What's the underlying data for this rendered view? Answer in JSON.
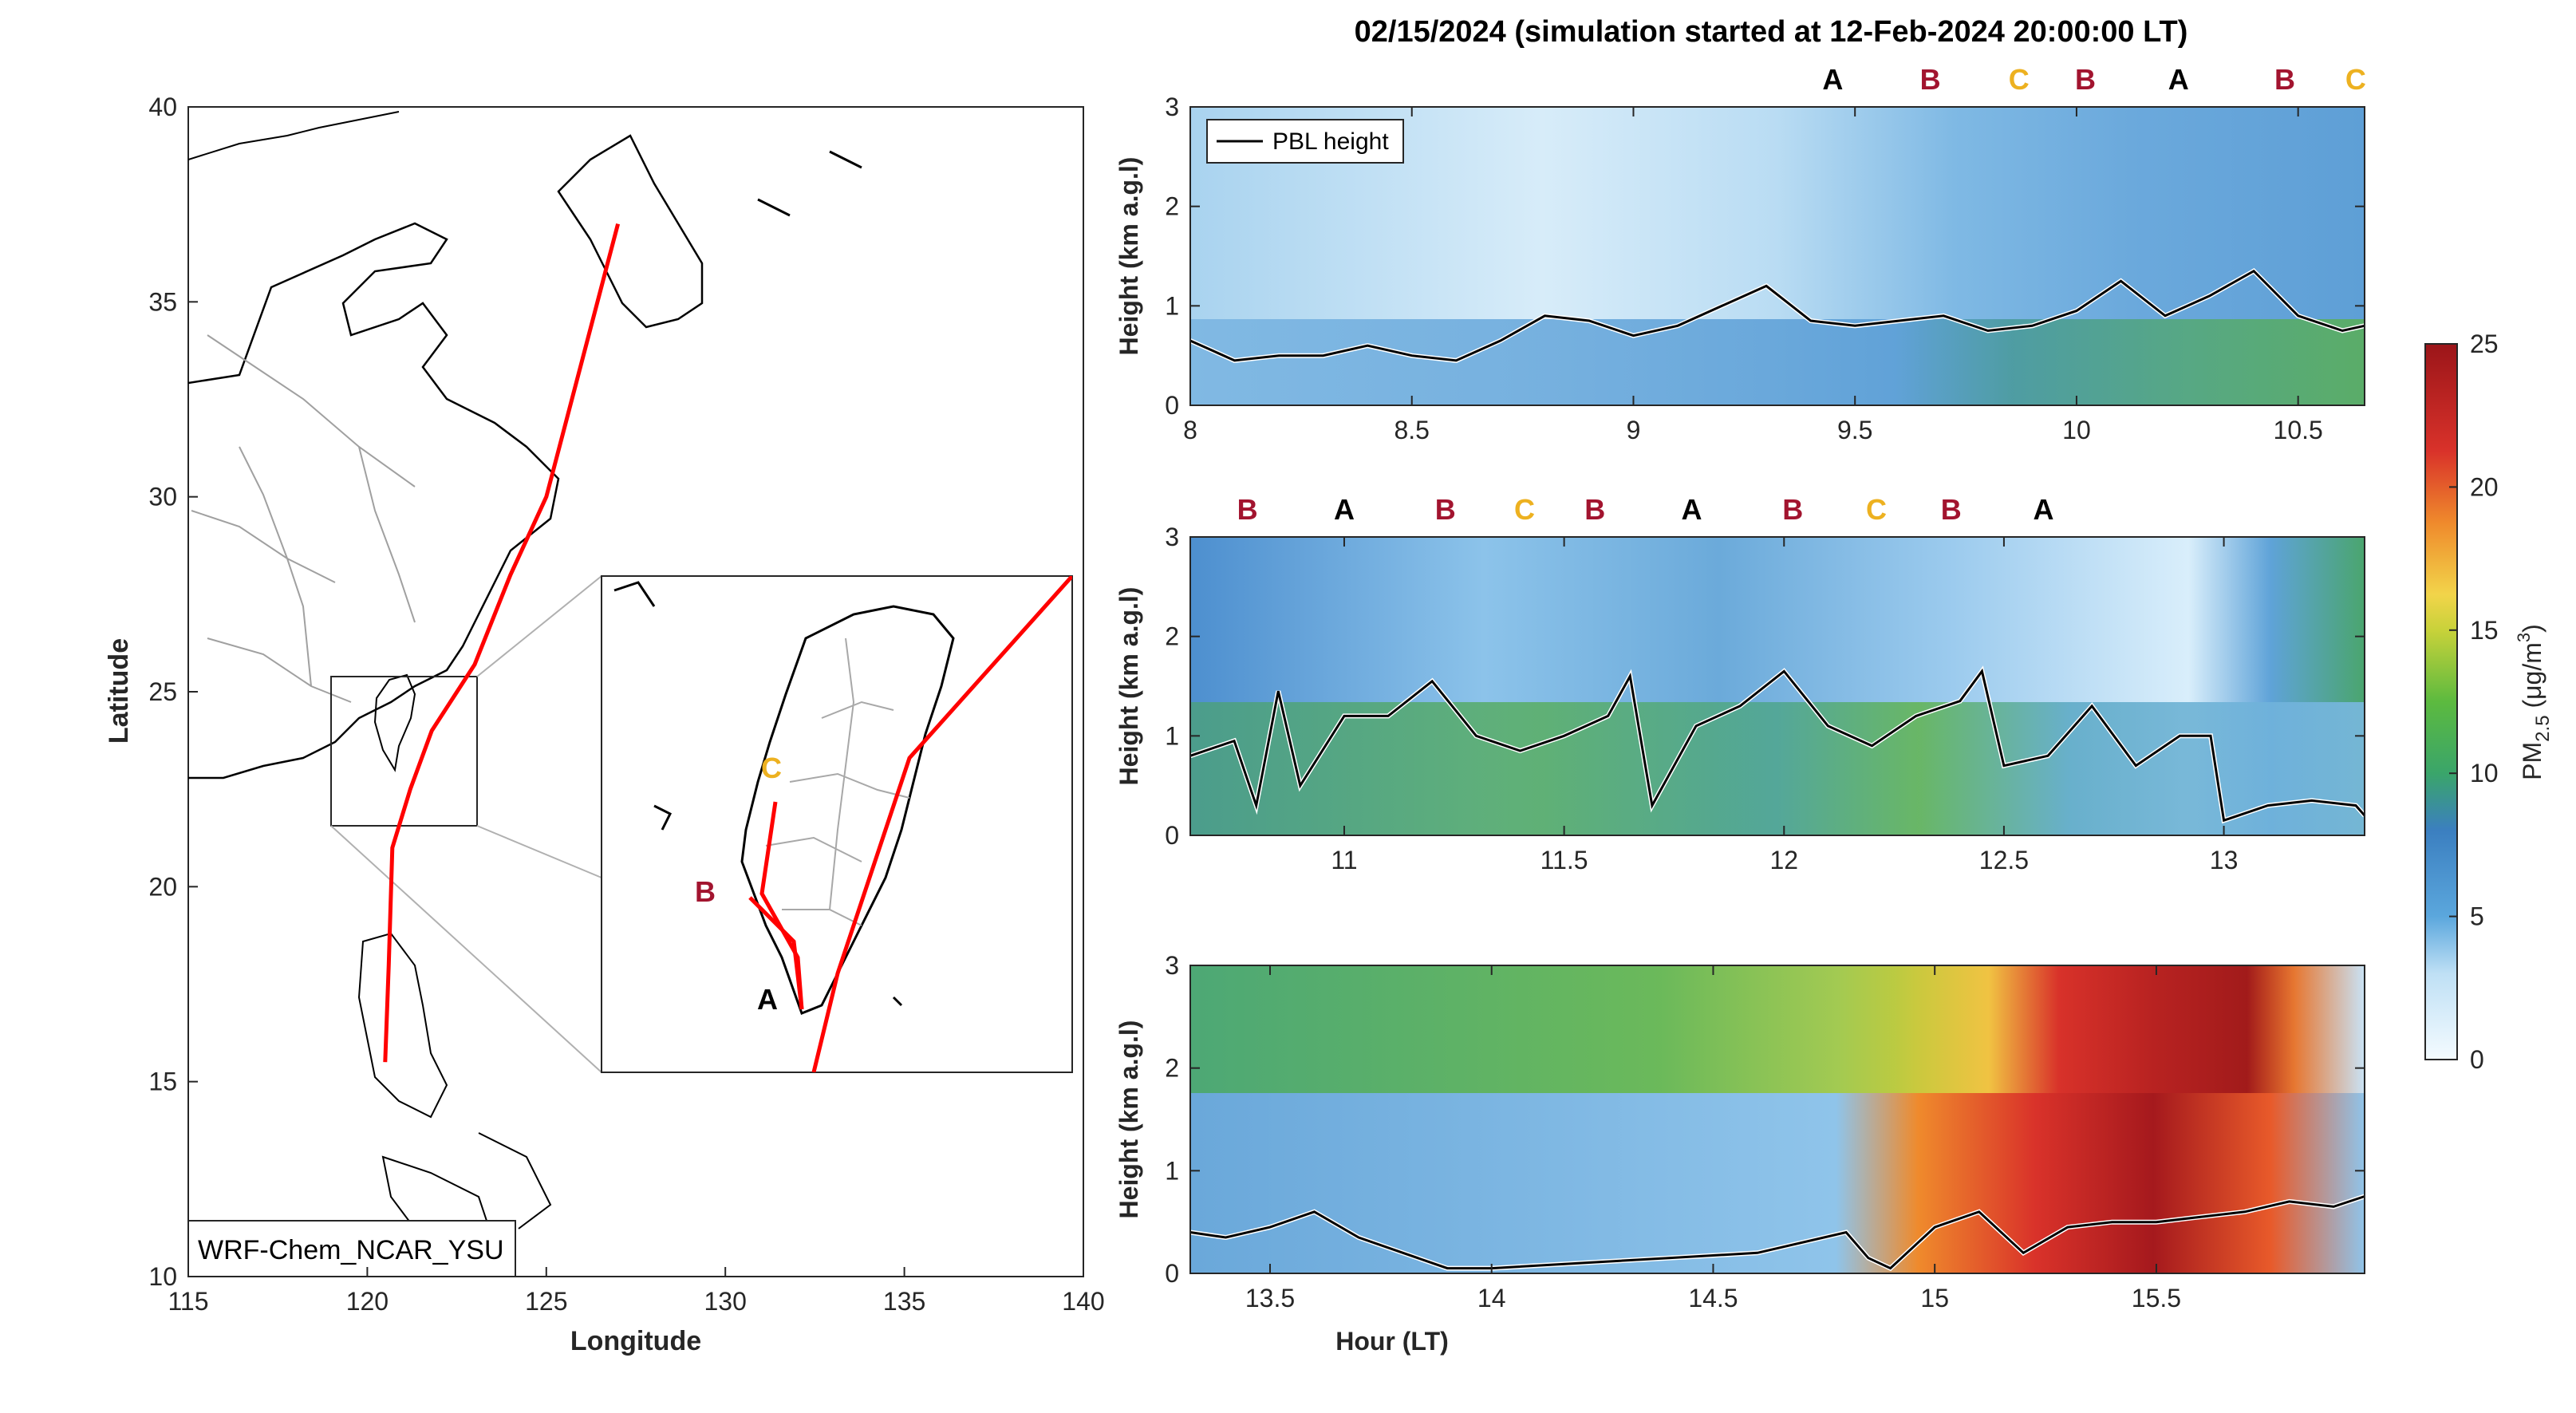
{
  "title": "02/15/2024 (simulation started at 12-Feb-2024 20:00:00 LT)",
  "colors": {
    "trajectory": "#ff0000",
    "marker_A": "#000000",
    "marker_B": "#a2142f",
    "marker_C": "#edb120"
  },
  "map": {
    "xlabel": "Longitude",
    "ylabel": "Latitude",
    "xticks": [
      "115",
      "120",
      "125",
      "130",
      "135",
      "140"
    ],
    "yticks": [
      "10",
      "15",
      "20",
      "25",
      "30",
      "35",
      "40"
    ],
    "model_label": "WRF-Chem_NCAR_YSU",
    "inset_labels": [
      "A",
      "B",
      "C"
    ]
  },
  "colorbar": {
    "label_main": "PM",
    "label_sub": "2.5",
    "label_units": " (μg/m",
    "label_sup": "3",
    "label_end": ")",
    "ticks": [
      "0",
      "5",
      "10",
      "15",
      "20",
      "25"
    ]
  },
  "panels": [
    {
      "ylabel": "Height (km a.g.l)",
      "xticks": [
        "8",
        "8.5",
        "9",
        "9.5",
        "10",
        "10.5"
      ],
      "yticks": [
        "0",
        "1",
        "2",
        "3"
      ],
      "legend": "PBL height",
      "markers": [
        "A",
        "B",
        "C",
        "B",
        "A",
        "B",
        "C"
      ]
    },
    {
      "ylabel": "Height (km a.g.l)",
      "xticks": [
        "11",
        "11.5",
        "12",
        "12.5",
        "13"
      ],
      "yticks": [
        "0",
        "1",
        "2",
        "3"
      ],
      "markers": [
        "B",
        "A",
        "B",
        "C",
        "B",
        "A",
        "B",
        "C",
        "B",
        "A"
      ]
    },
    {
      "ylabel": "Height (km a.g.l)",
      "xlabel": "Hour (LT)",
      "xticks": [
        "13.5",
        "14",
        "14.5",
        "15",
        "15.5"
      ],
      "yticks": [
        "0",
        "1",
        "2",
        "3"
      ]
    }
  ],
  "chart_data": [
    {
      "type": "line",
      "title": "02/15/2024 (simulation started at 12-Feb-2024 20:00:00 LT)",
      "xlim": [
        8.0,
        10.65
      ],
      "ylim": [
        0,
        3
      ],
      "ylabel": "Height (km a.g.l)",
      "series": [
        {
          "name": "PBL height",
          "x": [
            8.0,
            8.05,
            8.1,
            8.2,
            8.3,
            8.4,
            8.5,
            8.6,
            8.7,
            8.8,
            8.9,
            9.0,
            9.1,
            9.2,
            9.3,
            9.4,
            9.5,
            9.6,
            9.7,
            9.8,
            9.9,
            10.0,
            10.1,
            10.2,
            10.3,
            10.4,
            10.5,
            10.6,
            10.65
          ],
          "y": [
            0.65,
            0.55,
            0.45,
            0.5,
            0.5,
            0.6,
            0.5,
            0.45,
            0.65,
            0.9,
            0.85,
            0.7,
            0.8,
            1.0,
            1.2,
            0.85,
            0.8,
            0.85,
            0.9,
            0.75,
            0.8,
            0.95,
            1.25,
            0.9,
            1.1,
            1.35,
            0.9,
            0.75,
            0.8
          ]
        }
      ],
      "markers_x": [
        9.45,
        9.67,
        9.87,
        10.02,
        10.23,
        10.47,
        10.63
      ],
      "markers": [
        "A",
        "B",
        "C",
        "B",
        "A",
        "B",
        "C"
      ]
    },
    {
      "type": "line",
      "xlim": [
        10.65,
        13.32
      ],
      "ylim": [
        0,
        3
      ],
      "ylabel": "Height (km a.g.l)",
      "series": [
        {
          "name": "PBL height",
          "x": [
            10.65,
            10.75,
            10.8,
            10.85,
            10.9,
            11.0,
            11.1,
            11.2,
            11.3,
            11.4,
            11.5,
            11.6,
            11.65,
            11.7,
            11.8,
            11.9,
            12.0,
            12.1,
            12.2,
            12.3,
            12.4,
            12.45,
            12.5,
            12.6,
            12.7,
            12.8,
            12.9,
            12.97,
            13.0,
            13.1,
            13.2,
            13.3,
            13.32
          ],
          "y": [
            0.8,
            0.95,
            0.3,
            1.45,
            0.5,
            1.2,
            1.2,
            1.55,
            1.0,
            0.85,
            1.0,
            1.2,
            1.6,
            0.3,
            1.1,
            1.3,
            1.65,
            1.1,
            0.9,
            1.2,
            1.35,
            1.65,
            0.7,
            0.8,
            1.3,
            0.7,
            1.0,
            1.0,
            0.15,
            0.3,
            0.35,
            0.3,
            0.2
          ]
        }
      ],
      "markers_x": [
        10.78,
        11.0,
        11.23,
        11.41,
        11.57,
        11.79,
        12.02,
        12.21,
        12.38,
        12.59
      ],
      "markers": [
        "B",
        "A",
        "B",
        "C",
        "B",
        "A",
        "B",
        "C",
        "B",
        "A"
      ]
    },
    {
      "type": "line",
      "xlim": [
        13.32,
        15.97
      ],
      "ylim": [
        0,
        3
      ],
      "xlabel": "Hour (LT)",
      "ylabel": "Height (km a.g.l)",
      "series": [
        {
          "name": "PBL height",
          "x": [
            13.32,
            13.4,
            13.5,
            13.6,
            13.7,
            13.8,
            13.9,
            14.0,
            14.2,
            14.4,
            14.6,
            14.8,
            14.85,
            14.9,
            15.0,
            15.1,
            15.2,
            15.3,
            15.4,
            15.5,
            15.6,
            15.7,
            15.8,
            15.9,
            15.97
          ],
          "y": [
            0.4,
            0.35,
            0.45,
            0.6,
            0.35,
            0.2,
            0.05,
            0.05,
            0.1,
            0.15,
            0.2,
            0.4,
            0.15,
            0.05,
            0.45,
            0.6,
            0.2,
            0.45,
            0.5,
            0.5,
            0.55,
            0.6,
            0.7,
            0.65,
            0.75
          ]
        }
      ]
    },
    {
      "type": "line",
      "xlabel": "Longitude",
      "ylabel": "Latitude",
      "xlim": [
        115,
        140
      ],
      "ylim": [
        10,
        40
      ],
      "series": [
        {
          "name": "",
          "x": [
            127.0,
            126.0,
            125.0,
            124.0,
            123.0,
            121.8,
            121.2,
            120.7,
            120.6,
            120.5
          ],
          "y": [
            37.0,
            33.5,
            30.0,
            28.0,
            25.7,
            24.0,
            22.5,
            21.0,
            18.0,
            15.5
          ]
        }
      ]
    }
  ]
}
